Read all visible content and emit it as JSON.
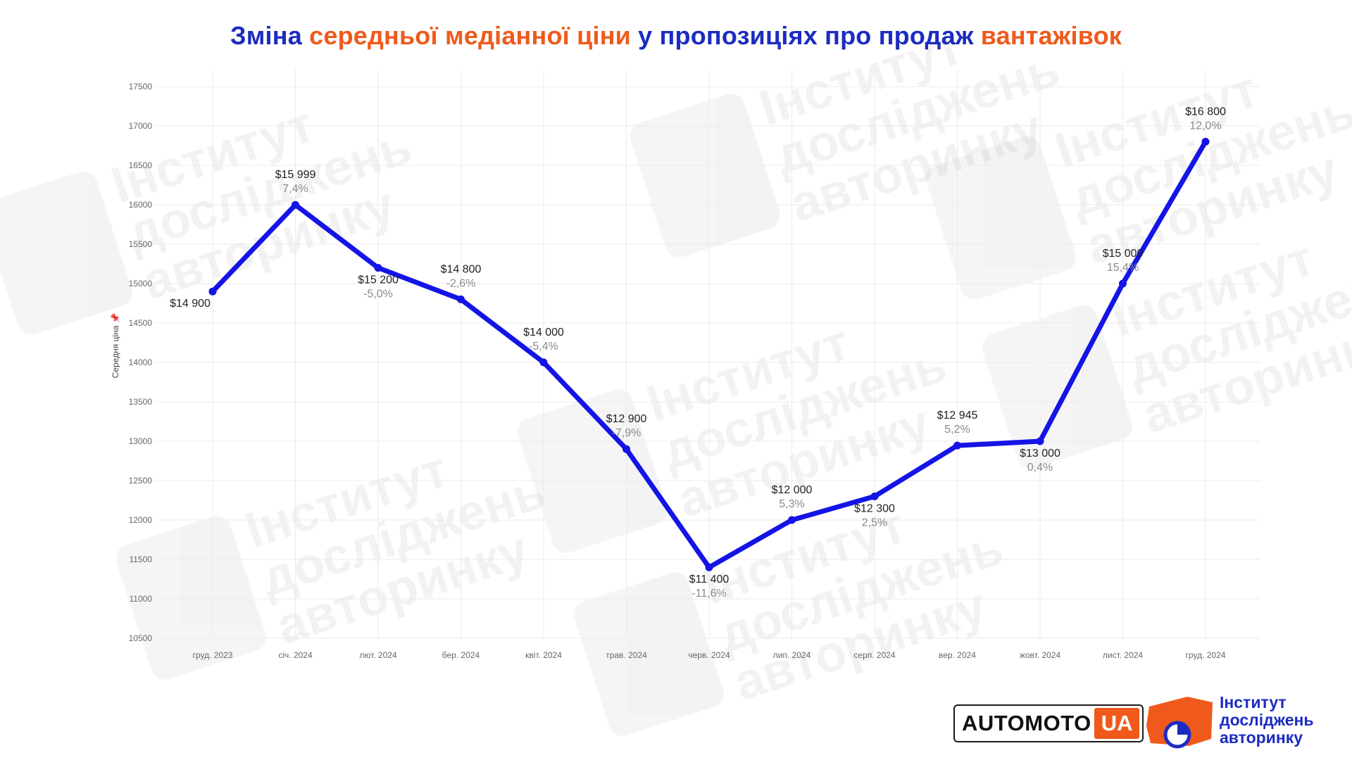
{
  "title": {
    "part1": "Зміна",
    "part2": "середньої медіанної ціни",
    "part3": "у пропозиціях про продаж",
    "part4": "вантажівок"
  },
  "colors": {
    "title_blue": "#1c2cc0",
    "title_orange": "#ef5a1c",
    "line": "#1414e6",
    "grid": "#ebebeb",
    "value_label": "#222222",
    "pct_label": "#8a8a8a"
  },
  "chart_data": {
    "type": "line",
    "title": "",
    "xlabel": "",
    "ylabel": "Середня ціна",
    "ylim": [
      10500,
      17500
    ],
    "y_ticks": [
      10500,
      11000,
      11500,
      12000,
      12500,
      13000,
      13500,
      14000,
      14500,
      15000,
      15500,
      16000,
      16500,
      17000,
      17500
    ],
    "categories": [
      "груд. 2023",
      "січ. 2024",
      "лют. 2024",
      "бер. 2024",
      "квіт. 2024",
      "трав. 2024",
      "черв. 2024",
      "лип. 2024",
      "серп. 2024",
      "вер. 2024",
      "жовт. 2024",
      "лист. 2024",
      "груд. 2024"
    ],
    "series": [
      {
        "values": [
          14900,
          15999,
          15200,
          14800,
          14000,
          12900,
          11400,
          12000,
          12300,
          12945,
          13000,
          15000,
          16800
        ]
      }
    ],
    "value_labels": [
      "$14 900",
      "$15 999",
      "$15 200",
      "$14 800",
      "$14 000",
      "$12 900",
      "$11 400",
      "$12 000",
      "$12 300",
      "$12 945",
      "$13 000",
      "$15 000",
      "$16 800"
    ],
    "change_labels": [
      "",
      "7,4%",
      "-5,0%",
      "-2,6%",
      "-5,4%",
      "-7,9%",
      "-11,6%",
      "5,3%",
      "2,5%",
      "5,2%",
      "0,4%",
      "15,4%",
      "12,0%"
    ],
    "label_positions": [
      "below-left",
      "above",
      "below",
      "above",
      "above",
      "above",
      "below",
      "above",
      "below",
      "above",
      "below",
      "above",
      "above"
    ],
    "grid": true,
    "legend": "none"
  },
  "logos": {
    "automoto_main": "AUTOMOTO",
    "automoto_suffix": "UA",
    "institute_line1": "Інститут",
    "institute_line2": "досліджень",
    "institute_line3": "авторинку",
    "watermark_line1": "Інститут",
    "watermark_line2": "досліджень",
    "watermark_line3": "авторинку"
  }
}
